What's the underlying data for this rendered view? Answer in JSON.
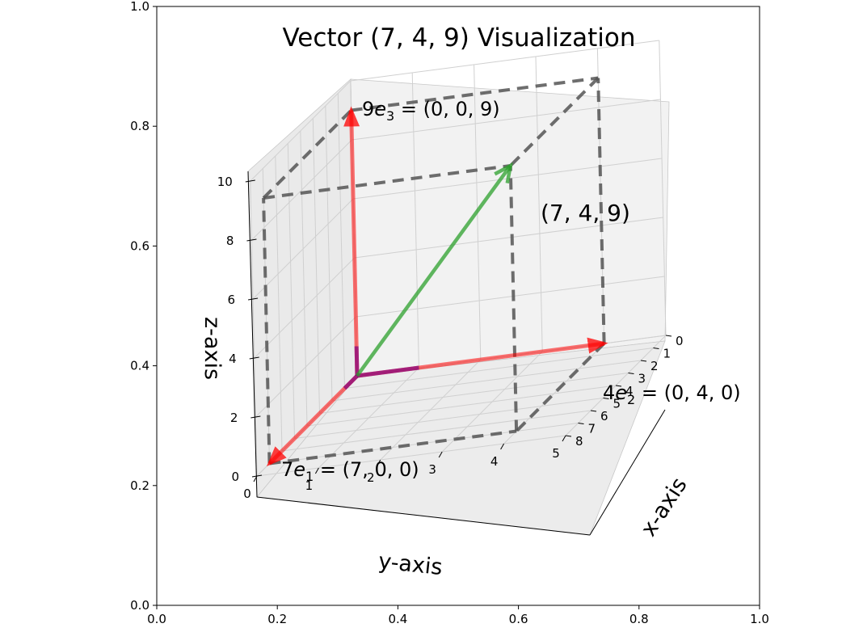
{
  "chart_data": {
    "type": "3d-vector",
    "title": "Vector (7, 4, 9) Visualization",
    "vector": [
      7,
      4,
      9
    ],
    "point_label": "(7, 4, 9)",
    "components": [
      {
        "name": "e1",
        "coef": "7",
        "sub": "1",
        "value": "(7, 0, 0)",
        "tip": [
          7,
          0,
          0
        ],
        "color": "#ff0000"
      },
      {
        "name": "e2",
        "coef": "4",
        "sub": "2",
        "value": "(0, 4, 0)",
        "tip": [
          0,
          4,
          0
        ],
        "color": "#ff0000"
      },
      {
        "name": "e3",
        "coef": "9",
        "sub": "3",
        "value": "(0, 0, 9)",
        "tip": [
          0,
          0,
          9
        ],
        "color": "#ff0000"
      }
    ],
    "main_vector_color": "#2ca02c",
    "unit_vector_color": "#800080",
    "guide_color": "#555555",
    "axes3d": {
      "x": {
        "label": "x-axis",
        "range": [
          0,
          8
        ],
        "ticks": [
          "0",
          "1",
          "2",
          "3",
          "4",
          "5",
          "6",
          "7",
          "8"
        ]
      },
      "y": {
        "label": "y-axis",
        "range": [
          0,
          5
        ],
        "ticks": [
          "0",
          "1",
          "2",
          "3",
          "4",
          "5"
        ]
      },
      "z": {
        "label": "z-axis",
        "range": [
          0,
          10
        ],
        "ticks": [
          "0",
          "2",
          "4",
          "6",
          "8",
          "10"
        ]
      }
    },
    "frame": {
      "xticks": [
        "0.0",
        "0.2",
        "0.4",
        "0.6",
        "0.8",
        "1.0"
      ],
      "yticks": [
        "0.0",
        "0.2",
        "0.4",
        "0.6",
        "0.8",
        "1.0"
      ]
    }
  }
}
